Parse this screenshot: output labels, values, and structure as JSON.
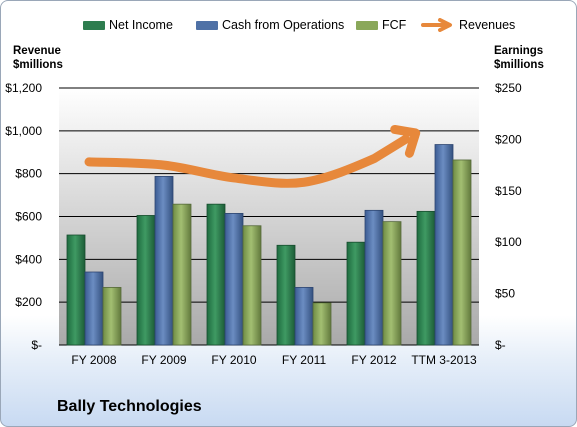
{
  "legend": {
    "items": [
      {
        "label": "Net Income",
        "color": "#2e7d4f",
        "shape": "bar"
      },
      {
        "label": "Cash from Operations",
        "color": "#4f71a6",
        "shape": "bar"
      },
      {
        "label": "FCF",
        "color": "#8aa85a",
        "shape": "bar"
      },
      {
        "label": "Revenues",
        "color": "#e7883b",
        "shape": "arrow"
      }
    ]
  },
  "axis_titles": {
    "left_line1": "Revenue",
    "left_line2": "$millions",
    "right_line1": "Earnings",
    "right_line2": "$millions"
  },
  "footer": {
    "company": "Bally Technologies"
  },
  "colors": {
    "plot_top": "#ffffff",
    "plot_bottom": "#a9a9a9",
    "gridline": "#000000",
    "revenue_arrow": "#e7883b"
  },
  "chart_data": {
    "type": "bar",
    "categories": [
      "FY 2008",
      "FY 2009",
      "FY 2010",
      "FY 2011",
      "FY 2012",
      "TTM 3-2013"
    ],
    "left_axis": {
      "label": "Revenue $millions",
      "ylim": [
        0,
        1200
      ],
      "ticks": [
        0,
        200,
        400,
        600,
        800,
        1000,
        1200
      ],
      "tick_labels": [
        "$-",
        "$200",
        "$400",
        "$600",
        "$800",
        "$1,000",
        "$1,200"
      ]
    },
    "right_axis": {
      "label": "Earnings $millions",
      "ylim": [
        0,
        250
      ],
      "ticks": [
        0,
        50,
        100,
        150,
        200,
        250
      ],
      "tick_labels": [
        "$-",
        "$50",
        "$100",
        "$150",
        "$200",
        "$250"
      ]
    },
    "series": [
      {
        "name": "Net Income",
        "axis": "right",
        "values": [
          107,
          126,
          137,
          97,
          100,
          130
        ]
      },
      {
        "name": "Cash from Operations",
        "axis": "right",
        "values": [
          71,
          164,
          128,
          56,
          131,
          195
        ]
      },
      {
        "name": "FCF",
        "axis": "right",
        "values": [
          56,
          137,
          116,
          41,
          120,
          180
        ]
      }
    ],
    "revenues_trend": {
      "name": "Revenues",
      "axis": "left",
      "style": "smooth arrow",
      "values": [
        855,
        840,
        780,
        760,
        870,
        985
      ]
    },
    "gridlines": true,
    "legend_position": "top"
  }
}
